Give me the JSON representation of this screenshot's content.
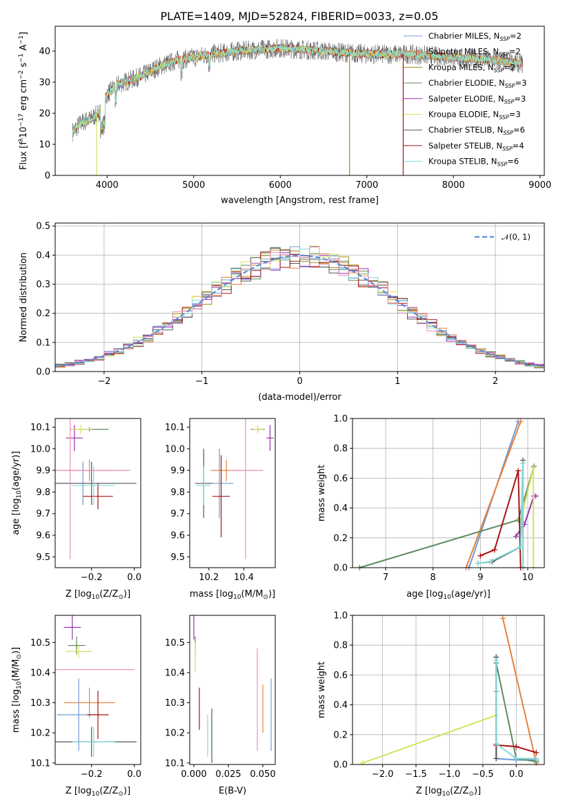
{
  "figure": {
    "title": "PLATE=1409, MJD=52824, FIBERID=0033, z=0.05"
  },
  "colors": [
    "#6e9ad8",
    "#e88036",
    "#a88714",
    "#5e8a62",
    "#9b2fae",
    "#d4e25e",
    "#555555",
    "#aa1111",
    "#84dada",
    "#ec8cb9"
  ],
  "chart_data": [
    {
      "id": "spectrum",
      "type": "line",
      "title": "PLATE=1409, MJD=52824, FIBERID=0033, z=0.05",
      "xlabel": "wavelength [Angstrom, rest frame]",
      "ylabel_parts": [
        "Flux [f",
        "λ",
        "10",
        "−17",
        " erg cm",
        "−2",
        " s",
        "−1",
        " A",
        "−1",
        "]"
      ],
      "xlim": [
        3400,
        9050
      ],
      "ylim": [
        0,
        48
      ],
      "xticks": [
        4000,
        5000,
        6000,
        7000,
        8000,
        9000
      ],
      "yticks": [
        0,
        10,
        20,
        30,
        40
      ],
      "x_range": [
        3600,
        8800
      ],
      "continuum": {
        "x": [
          3600,
          3700,
          3800,
          3900,
          3950,
          4000,
          4100,
          4200,
          4300,
          4400,
          4600,
          4800,
          5000,
          5200,
          5500,
          6000,
          6500,
          7000,
          7500,
          8000,
          8500,
          8800
        ],
        "y": [
          14,
          17,
          18,
          20,
          24,
          26,
          29,
          30,
          31,
          32,
          35,
          37,
          38,
          39,
          40,
          41,
          40,
          39,
          39,
          38,
          37,
          36
        ]
      },
      "legend": [
        {
          "label": "Chabrier MILES, N",
          "sub": "SSP",
          "val": "=2",
          "series": 0
        },
        {
          "label": "Salpeter MILES, N",
          "sub": "SSP",
          "val": "=2",
          "series": 1
        },
        {
          "label": "Kroupa MILES, N",
          "sub": "SSP",
          "val": "=2",
          "series": 2
        },
        {
          "label": "Chabrier ELODIE, N",
          "sub": "SSP",
          "val": "=3",
          "series": 3
        },
        {
          "label": "Salpeter ELODIE, N",
          "sub": "SSP",
          "val": "=3",
          "series": 4
        },
        {
          "label": "Kroupa ELODIE, N",
          "sub": "SSP",
          "val": "=3",
          "series": 5
        },
        {
          "label": "Chabrier STELIB, N",
          "sub": "SSP",
          "val": "=6",
          "series": 6
        },
        {
          "label": "Salpeter STELIB, N",
          "sub": "SSP",
          "val": "=4",
          "series": 7
        },
        {
          "label": "Kroupa STELIB, N",
          "sub": "SSP",
          "val": "=6",
          "series": 8
        }
      ]
    },
    {
      "id": "residuals",
      "type": "histogram",
      "xlabel": "(data-model)/error",
      "ylabel": "Normed distribution",
      "xlim": [
        -2.5,
        2.5
      ],
      "ylim": [
        0,
        0.51
      ],
      "xticks": [
        -2,
        -1,
        0,
        1,
        2
      ],
      "yticks": [
        0.0,
        0.1,
        0.2,
        0.3,
        0.4,
        0.5
      ],
      "bin_width": 0.1,
      "legend_label": "𝒩(0, 1)",
      "grid": true
    },
    {
      "id": "age_vs_Z",
      "type": "errorbar",
      "xlabel_parts": [
        "Z [log",
        "10",
        "(Z/Z",
        "⊙",
        ")]"
      ],
      "ylabel_parts": [
        "age  [log",
        "10",
        "(age/yr)]"
      ],
      "xlim": [
        -0.37,
        0.03
      ],
      "ylim": [
        9.45,
        10.14
      ],
      "xticks": [
        -0.2,
        0.0
      ],
      "yticks": [
        9.5,
        9.6,
        9.7,
        9.8,
        9.9,
        10.0,
        10.1
      ],
      "points": [
        {
          "x": -0.24,
          "xerr": 0.12,
          "y": 9.84,
          "yerr": 0.1,
          "c": 0
        },
        {
          "x": -0.21,
          "xerr": 0.13,
          "y": 9.9,
          "yerr": 0.05,
          "c": 1
        },
        {
          "x": -0.21,
          "xerr": 0.09,
          "y": 10.09,
          "yerr": 0.01,
          "c": 3
        },
        {
          "x": -0.28,
          "xerr": 0.04,
          "y": 10.05,
          "yerr": 0.06,
          "c": 4
        },
        {
          "x": -0.25,
          "xerr": 0.05,
          "y": 10.09,
          "yerr": 0.02,
          "c": 5
        },
        {
          "x": -0.2,
          "xerr": 0.21,
          "y": 9.84,
          "yerr": 0.1,
          "c": 6
        },
        {
          "x": -0.17,
          "xerr": 0.07,
          "y": 9.78,
          "yerr": 0.06,
          "c": 7
        },
        {
          "x": -0.19,
          "xerr": 0.1,
          "y": 9.83,
          "yerr": 0.09,
          "c": 8
        },
        {
          "x": -0.3,
          "xerr": 0.28,
          "y": 9.9,
          "yerr": 0.41,
          "c": 9
        }
      ]
    },
    {
      "id": "age_vs_mass",
      "type": "errorbar",
      "xlabel_parts": [
        "mass [log",
        "10",
        "(M/M",
        "⊙",
        ")]"
      ],
      "ylabel_parts": [],
      "xlim": [
        10.09,
        10.58
      ],
      "ylim": [
        9.45,
        10.14
      ],
      "xticks": [
        10.2,
        10.4
      ],
      "yticks": [
        9.5,
        9.6,
        9.7,
        9.8,
        9.9,
        10.0,
        10.1
      ],
      "points": [
        {
          "x": 10.26,
          "xerr": 0.08,
          "y": 9.84,
          "yerr": 0.16,
          "c": 0
        },
        {
          "x": 10.3,
          "xerr": 0.09,
          "y": 9.9,
          "yerr": 0.05,
          "c": 1
        },
        {
          "x": 10.48,
          "xerr": 0.04,
          "y": 10.09,
          "yerr": 0.01,
          "c": 3
        },
        {
          "x": 10.55,
          "xerr": 0.02,
          "y": 10.05,
          "yerr": 0.06,
          "c": 4
        },
        {
          "x": 10.48,
          "xerr": 0.03,
          "y": 10.09,
          "yerr": 0.02,
          "c": 5
        },
        {
          "x": 10.17,
          "xerr": 0.05,
          "y": 9.84,
          "yerr": 0.16,
          "c": 6
        },
        {
          "x": 10.27,
          "xerr": 0.05,
          "y": 9.78,
          "yerr": 0.19,
          "c": 7
        },
        {
          "x": 10.17,
          "xerr": 0.04,
          "y": 9.83,
          "yerr": 0.09,
          "c": 8
        },
        {
          "x": 10.41,
          "xerr": 0.1,
          "y": 9.9,
          "yerr": 0.41,
          "c": 9
        }
      ]
    },
    {
      "id": "mw_vs_age",
      "type": "line",
      "xlabel_parts": [
        "age  [log",
        "10",
        "(age/yr)]"
      ],
      "ylabel": "mass weight",
      "xlim": [
        6.3,
        10.35
      ],
      "ylim": [
        0,
        1.0
      ],
      "xticks": [
        7,
        8,
        9,
        10
      ],
      "yticks": [
        0.0,
        0.2,
        0.4,
        0.6,
        0.8,
        1.0
      ],
      "grid": true,
      "series": [
        {
          "c": 0,
          "x": [
            8.76,
            9.8
          ],
          "y": [
            0.0,
            0.98
          ]
        },
        {
          "c": 1,
          "x": [
            8.7,
            9.85
          ],
          "y": [
            0.0,
            0.98
          ]
        },
        {
          "c": 3,
          "x": [
            6.45,
            9.8,
            10.13
          ],
          "y": [
            0.0,
            0.32,
            0.68
          ]
        },
        {
          "c": 4,
          "x": [
            9.75,
            9.93,
            10.13,
            10.17
          ],
          "y": [
            0.21,
            0.29,
            0.48,
            0.48
          ]
        },
        {
          "c": 5,
          "x": [
            9.85,
            10.12,
            10.12
          ],
          "y": [
            0.32,
            0.67,
            0.0
          ]
        },
        {
          "c": 6,
          "x": [
            8.95,
            9.25,
            9.85,
            9.9,
            9.9
          ],
          "y": [
            0.03,
            0.04,
            0.14,
            0.72,
            0.0
          ]
        },
        {
          "c": 7,
          "x": [
            9.0,
            9.3,
            9.8,
            9.85
          ],
          "y": [
            0.08,
            0.12,
            0.65,
            0.0
          ]
        },
        {
          "c": 8,
          "x": [
            8.95,
            9.2,
            9.85,
            9.9,
            9.9
          ],
          "y": [
            0.03,
            0.04,
            0.14,
            0.7,
            0.0
          ]
        }
      ]
    },
    {
      "id": "mass_vs_Z",
      "type": "errorbar",
      "xlabel_parts": [
        "Z [log",
        "10",
        "(Z/Z",
        "⊙",
        ")]"
      ],
      "ylabel_parts": [
        "mass [log",
        "10",
        "(M/M",
        "⊙",
        ")]"
      ],
      "xlim": [
        -0.37,
        0.03
      ],
      "ylim": [
        10.095,
        10.59
      ],
      "xticks": [
        -0.2,
        0.0
      ],
      "yticks": [
        10.1,
        10.2,
        10.3,
        10.4,
        10.5
      ],
      "points": [
        {
          "x": -0.26,
          "xerr": 0.1,
          "y": 10.26,
          "yerr": 0.12,
          "c": 0
        },
        {
          "x": -0.21,
          "xerr": 0.12,
          "y": 10.3,
          "yerr": 0.05,
          "c": 1
        },
        {
          "x": -0.27,
          "xerr": 0.04,
          "y": 10.49,
          "yerr": 0.03,
          "c": 3
        },
        {
          "x": -0.29,
          "xerr": 0.04,
          "y": 10.55,
          "yerr": 0.04,
          "c": 4
        },
        {
          "x": -0.26,
          "xerr": 0.06,
          "y": 10.47,
          "yerr": 0.02,
          "c": 5
        },
        {
          "x": -0.2,
          "xerr": 0.21,
          "y": 10.17,
          "yerr": 0.05,
          "c": 6
        },
        {
          "x": -0.17,
          "xerr": 0.05,
          "y": 10.26,
          "yerr": 0.08,
          "c": 7
        },
        {
          "x": -0.19,
          "xerr": 0.1,
          "y": 10.17,
          "yerr": 0.05,
          "c": 8
        },
        {
          "x": -0.3,
          "xerr": 0.3,
          "y": 10.41,
          "yerr": 0.0,
          "c": 9
        }
      ]
    },
    {
      "id": "mass_vs_EBV",
      "type": "errorbar",
      "xlabel": "E(B-V)",
      "xlim": [
        -0.003,
        0.059
      ],
      "ylim": [
        10.095,
        10.59
      ],
      "xticks": [
        0.0,
        0.025,
        0.05
      ],
      "xtick_labels": [
        "0.000",
        "0.025",
        "0.050"
      ],
      "yticks": [
        10.1,
        10.2,
        10.3,
        10.4,
        10.5
      ],
      "points": [
        {
          "x": 0.056,
          "y": 10.26,
          "yerr": 0.12,
          "c": 0
        },
        {
          "x": 0.05,
          "y": 10.28,
          "yerr": 0.08,
          "c": 1
        },
        {
          "x": 0.001,
          "y": 10.49,
          "yerr": 0.03,
          "c": 3
        },
        {
          "x": 0.0,
          "y": 10.55,
          "yerr": 0.04,
          "c": 4
        },
        {
          "x": 0.001,
          "y": 10.45,
          "yerr": 0.05,
          "c": 5
        },
        {
          "x": 0.013,
          "y": 10.19,
          "yerr": 0.09,
          "c": 6
        },
        {
          "x": 0.004,
          "y": 10.28,
          "yerr": 0.07,
          "c": 7
        },
        {
          "x": 0.01,
          "y": 10.19,
          "yerr": 0.07,
          "c": 8
        },
        {
          "x": 0.046,
          "y": 10.31,
          "yerr": 0.17,
          "c": 9
        }
      ]
    },
    {
      "id": "mw_vs_Z",
      "type": "line",
      "xlabel_parts": [
        "Z [log",
        "10",
        "(Z/Z",
        "⊙",
        ")]"
      ],
      "ylabel": "mass weight",
      "xlim": [
        -2.45,
        0.42
      ],
      "ylim": [
        0,
        1.0
      ],
      "xticks": [
        -2.0,
        -1.5,
        -1.0,
        -0.5,
        0.0
      ],
      "yticks": [
        0.0,
        0.2,
        0.4,
        0.6,
        0.8,
        1.0
      ],
      "grid": true,
      "series": [
        {
          "c": 0,
          "x": [
            -0.3,
            -0.3,
            -0.3,
            -0.3,
            0.0,
            0.3
          ],
          "y": [
            0.72,
            0.49,
            0.14,
            0.04,
            0.03,
            0.03
          ]
        },
        {
          "c": 1,
          "x": [
            -0.2,
            0.3
          ],
          "y": [
            0.98,
            0.01
          ]
        },
        {
          "c": 3,
          "x": [
            -0.3,
            0.0,
            0.3
          ],
          "y": [
            0.68,
            0.04,
            0.02
          ]
        },
        {
          "c": 5,
          "x": [
            -2.3,
            -0.3
          ],
          "y": [
            0.01,
            0.33
          ]
        },
        {
          "c": 6,
          "x": [
            -0.3,
            -0.3
          ],
          "y": [
            0.72,
            0.04
          ]
        },
        {
          "c": 7,
          "x": [
            -0.3,
            0.0,
            0.3
          ],
          "y": [
            0.13,
            0.12,
            0.08
          ]
        },
        {
          "c": 8,
          "x": [
            -0.3,
            -0.3,
            0.0,
            0.3
          ],
          "y": [
            0.7,
            0.14,
            0.04,
            0.04
          ]
        }
      ]
    }
  ]
}
